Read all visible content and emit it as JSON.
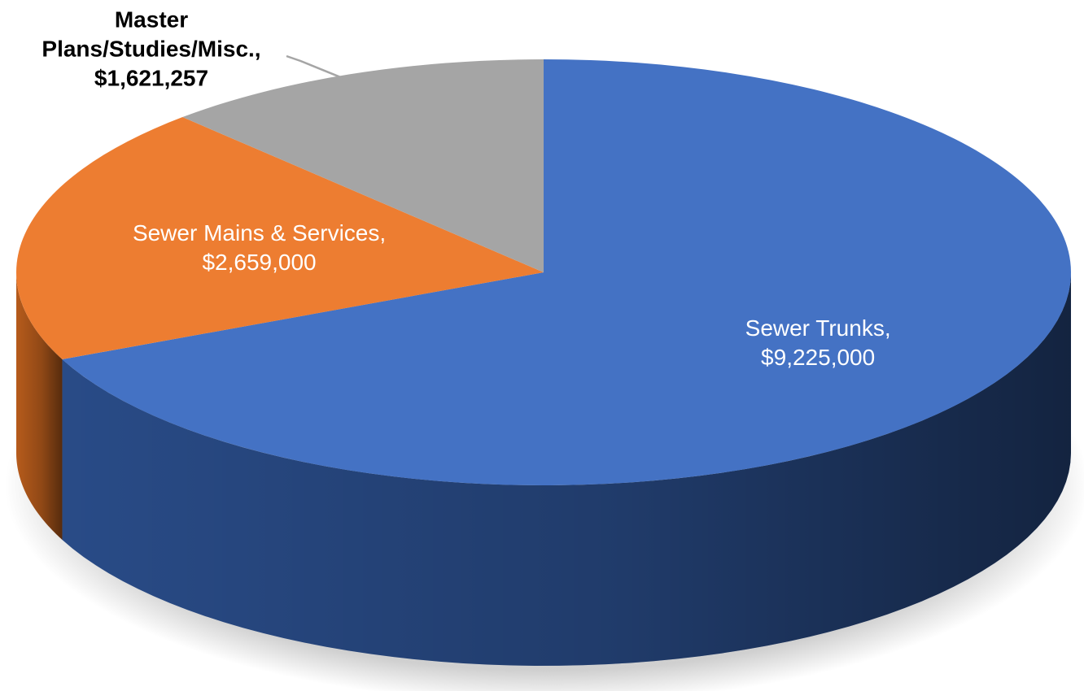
{
  "chart_data": {
    "type": "pie",
    "style": "3d",
    "slices": [
      {
        "category": "Sewer Trunks",
        "value": 9225000,
        "label_line1": "Sewer Trunks,",
        "label_line2": "$9,225,000",
        "color": "#4472C4",
        "side_color": "#2B4F8E",
        "label_color": "#ffffff",
        "label_placement": "inside"
      },
      {
        "category": "Sewer Mains & Services",
        "value": 2659000,
        "label_line1": "Sewer Mains & Services,",
        "label_line2": "$2,659,000",
        "color": "#ED7D31",
        "side_color": "#C0601D",
        "label_color": "#ffffff",
        "label_placement": "inside"
      },
      {
        "category": "Master Plans/Studies/Misc.",
        "value": 1621257,
        "label_line0": "Master",
        "label_line1": "Plans/Studies/Misc.,",
        "label_line2": "$1,621,257",
        "color": "#A5A5A5",
        "side_color": "#7F7F7F",
        "label_color": "#000000",
        "label_placement": "outside-leader"
      }
    ],
    "start": "12 o'clock",
    "direction": "clockwise",
    "legend": "none"
  }
}
